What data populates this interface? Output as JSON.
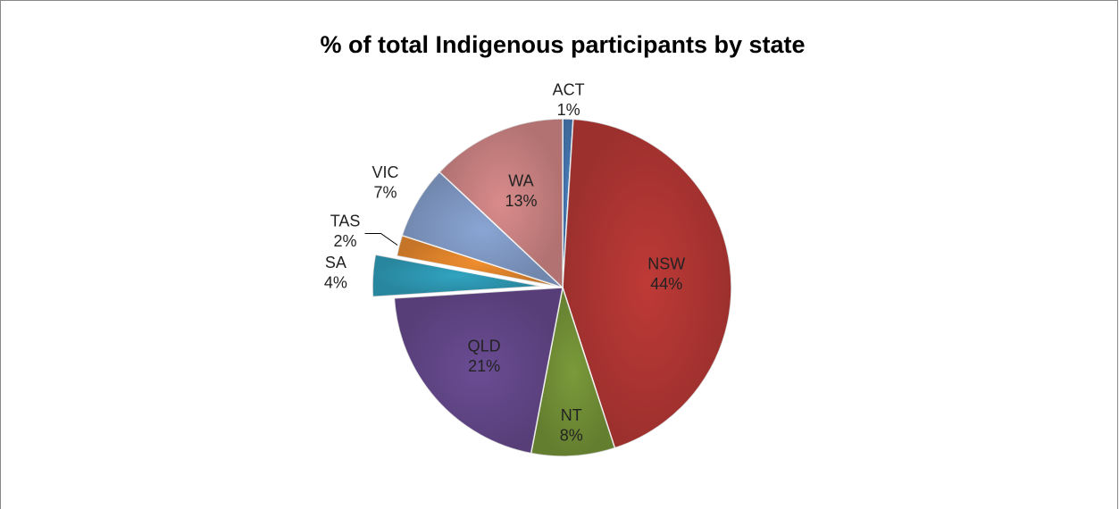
{
  "chart_data": {
    "type": "pie",
    "title": "% of total Indigenous participants by state",
    "categories": [
      "ACT",
      "NSW",
      "NT",
      "QLD",
      "SA",
      "TAS",
      "VIC",
      "WA"
    ],
    "values": [
      1,
      44,
      8,
      21,
      4,
      2,
      7,
      13
    ],
    "value_labels": [
      "1%",
      "44%",
      "8%",
      "21%",
      "4%",
      "2%",
      "7%",
      "13%"
    ],
    "colors": [
      "#4a7ebb",
      "#be3a37",
      "#7a9a3a",
      "#6a4c93",
      "#31a3c0",
      "#f18e2f",
      "#8aa5d4",
      "#d98b8b"
    ],
    "exploded_slice": "SA"
  }
}
